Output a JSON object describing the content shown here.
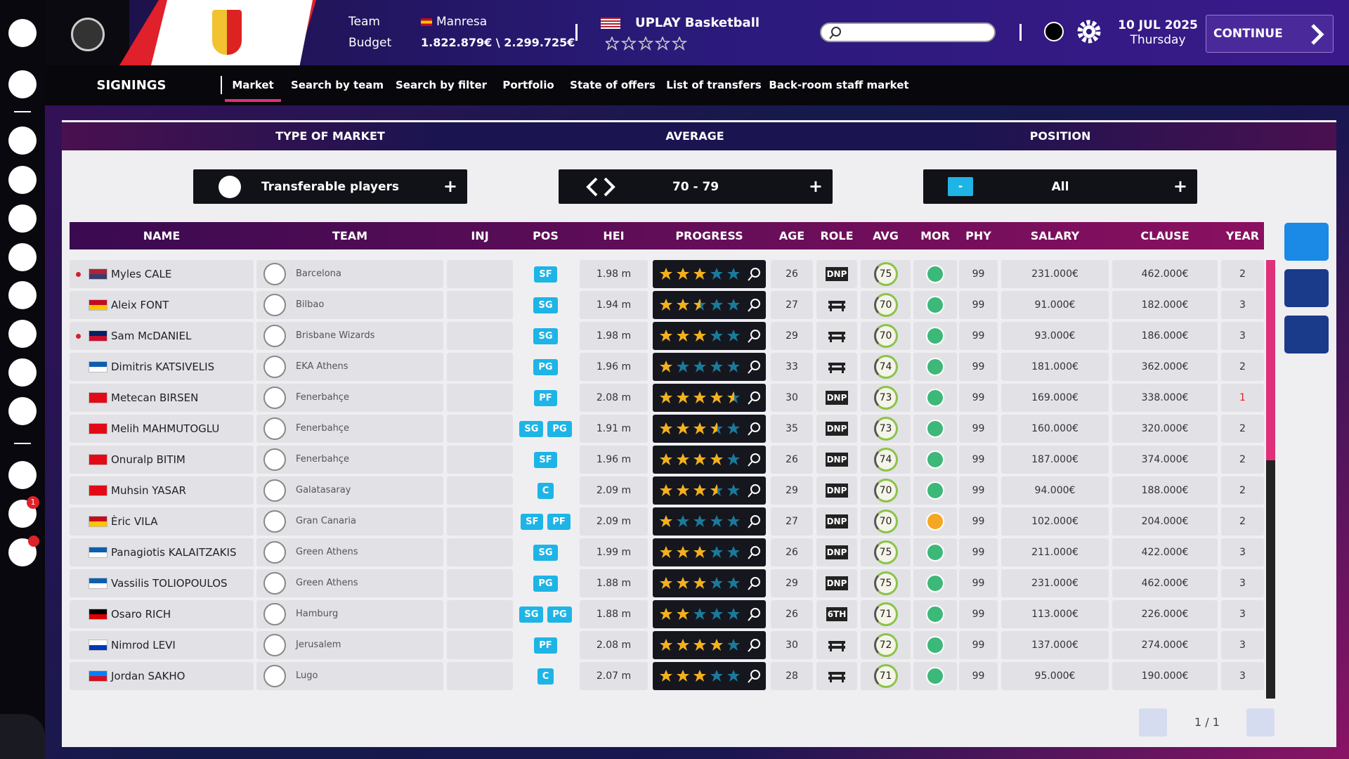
{
  "header": {
    "team_label": "Team",
    "team": "Manresa",
    "budget_label": "Budget",
    "budget": "1.822.879€ \\ 2.299.725€",
    "league": "UPLAY Basketball",
    "date": "10 JUL 2025",
    "weekday": "Thursday",
    "continue": "CONTINUE"
  },
  "nav": {
    "title": "SIGNINGS",
    "tabs": [
      "Market",
      "Search by team",
      "Search by filter",
      "Portfolio",
      "State of offers",
      "List of transfers",
      "Back-room staff market"
    ]
  },
  "filters": {
    "headers": [
      "TYPE OF MARKET",
      "AVERAGE",
      "POSITION"
    ],
    "market": "Transferable players",
    "average": "70 - 79",
    "position_badge": "-",
    "position": "All"
  },
  "sidebar": {
    "mail_badge": "1"
  },
  "table": {
    "columns": [
      "NAME",
      "TEAM",
      "INJ",
      "POS",
      "HEI",
      "PROGRESS",
      "AGE",
      "ROLE",
      "AVG",
      "MOR",
      "PHY",
      "SALARY",
      "CLAUSE",
      "YEAR"
    ],
    "rows": [
      {
        "name": "Myles CALE",
        "flag": [
          "#b22234",
          "#3c3b6e"
        ],
        "dot": true,
        "team": "Barcelona",
        "pos": [
          "SF"
        ],
        "hei": "1.98 m",
        "progress": 3,
        "age": 26,
        "role": "DNP",
        "avg": 75,
        "mor_color": "#3cb878",
        "phy": 99,
        "salary": "231.000€",
        "clause": "462.000€",
        "year": 2,
        "year_alert": false
      },
      {
        "name": "Aleix FONT",
        "flag": [
          "#c60b1e",
          "#ffc400"
        ],
        "dot": false,
        "team": "Bilbao",
        "pos": [
          "SG"
        ],
        "hei": "1.94 m",
        "progress": 2.5,
        "age": 27,
        "role": null,
        "avg": 70,
        "mor_color": "#3cb878",
        "phy": 99,
        "salary": "91.000€",
        "clause": "182.000€",
        "year": 3,
        "year_alert": false
      },
      {
        "name": "Sam McDANIEL",
        "flag": [
          "#012169",
          "#c8102e"
        ],
        "dot": true,
        "team": "Brisbane Wizards",
        "pos": [
          "SG"
        ],
        "hei": "1.98 m",
        "progress": 3,
        "age": 29,
        "role": null,
        "avg": 70,
        "mor_color": "#3cb878",
        "phy": 99,
        "salary": "93.000€",
        "clause": "186.000€",
        "year": 3,
        "year_alert": false
      },
      {
        "name": "Dimitris KATSIVELIS",
        "flag": [
          "#0d5eaf",
          "#ffffff"
        ],
        "dot": false,
        "team": "EKA Athens",
        "pos": [
          "PG"
        ],
        "hei": "1.96 m",
        "progress": 1,
        "age": 33,
        "role": null,
        "avg": 74,
        "mor_color": "#3cb878",
        "phy": 99,
        "salary": "181.000€",
        "clause": "362.000€",
        "year": 2,
        "year_alert": false
      },
      {
        "name": "Metecan BIRSEN",
        "flag": [
          "#e30a17",
          "#e30a17"
        ],
        "dot": false,
        "team": "Fenerbahçe",
        "pos": [
          "PF"
        ],
        "hei": "2.08 m",
        "progress": 4.5,
        "age": 30,
        "role": "DNP",
        "avg": 73,
        "mor_color": "#3cb878",
        "phy": 99,
        "salary": "169.000€",
        "clause": "338.000€",
        "year": 1,
        "year_alert": true
      },
      {
        "name": "Melih MAHMUTOGLU",
        "flag": [
          "#e30a17",
          "#e30a17"
        ],
        "dot": false,
        "team": "Fenerbahçe",
        "pos": [
          "SG",
          "PG"
        ],
        "hei": "1.91 m",
        "progress": 3.5,
        "age": 35,
        "role": "DNP",
        "avg": 73,
        "mor_color": "#3cb878",
        "phy": 99,
        "salary": "160.000€",
        "clause": "320.000€",
        "year": 2,
        "year_alert": false
      },
      {
        "name": "Onuralp BITIM",
        "flag": [
          "#e30a17",
          "#e30a17"
        ],
        "dot": false,
        "team": "Fenerbahçe",
        "pos": [
          "SF"
        ],
        "hei": "1.96 m",
        "progress": 4,
        "age": 26,
        "role": "DNP",
        "avg": 74,
        "mor_color": "#3cb878",
        "phy": 99,
        "salary": "187.000€",
        "clause": "374.000€",
        "year": 2,
        "year_alert": false
      },
      {
        "name": "Muhsin YASAR",
        "flag": [
          "#e30a17",
          "#e30a17"
        ],
        "dot": false,
        "team": "Galatasaray",
        "pos": [
          "C"
        ],
        "hei": "2.09 m",
        "progress": 3.5,
        "age": 29,
        "role": "DNP",
        "avg": 70,
        "mor_color": "#3cb878",
        "phy": 99,
        "salary": "94.000€",
        "clause": "188.000€",
        "year": 2,
        "year_alert": false
      },
      {
        "name": "Èric VILA",
        "flag": [
          "#c60b1e",
          "#ffc400"
        ],
        "dot": false,
        "team": "Gran Canaria",
        "pos": [
          "SF",
          "PF"
        ],
        "hei": "2.09 m",
        "progress": 1,
        "age": 27,
        "role": "DNP",
        "avg": 70,
        "mor_color": "#f5a623",
        "phy": 99,
        "salary": "102.000€",
        "clause": "204.000€",
        "year": 2,
        "year_alert": false
      },
      {
        "name": "Panagiotis KALAITZAKIS",
        "flag": [
          "#0d5eaf",
          "#ffffff"
        ],
        "dot": false,
        "team": "Green Athens",
        "pos": [
          "SG"
        ],
        "hei": "1.99 m",
        "progress": 3,
        "age": 26,
        "role": "DNP",
        "avg": 75,
        "mor_color": "#3cb878",
        "phy": 99,
        "salary": "211.000€",
        "clause": "422.000€",
        "year": 3,
        "year_alert": false
      },
      {
        "name": "Vassilis TOLIOPOULOS",
        "flag": [
          "#0d5eaf",
          "#ffffff"
        ],
        "dot": false,
        "team": "Green Athens",
        "pos": [
          "PG"
        ],
        "hei": "1.88 m",
        "progress": 3,
        "age": 29,
        "role": "DNP",
        "avg": 75,
        "mor_color": "#3cb878",
        "phy": 99,
        "salary": "231.000€",
        "clause": "462.000€",
        "year": 3,
        "year_alert": false
      },
      {
        "name": "Osaro RICH",
        "flag": [
          "#000000",
          "#dd0000"
        ],
        "dot": false,
        "team": "Hamburg",
        "pos": [
          "SG",
          "PG"
        ],
        "hei": "1.88 m",
        "progress": 2,
        "age": 26,
        "role": "6TH",
        "avg": 71,
        "mor_color": "#3cb878",
        "phy": 99,
        "salary": "113.000€",
        "clause": "226.000€",
        "year": 3,
        "year_alert": false
      },
      {
        "name": "Nimrod LEVI",
        "flag": [
          "#ffffff",
          "#0038b8"
        ],
        "dot": false,
        "team": "Jerusalem",
        "pos": [
          "PF"
        ],
        "hei": "2.08 m",
        "progress": 4,
        "age": 30,
        "role": null,
        "avg": 72,
        "mor_color": "#3cb878",
        "phy": 99,
        "salary": "137.000€",
        "clause": "274.000€",
        "year": 3,
        "year_alert": false
      },
      {
        "name": "Jordan SAKHO",
        "flag": [
          "#007fff",
          "#ce1021"
        ],
        "dot": false,
        "team": "Lugo",
        "pos": [
          "C"
        ],
        "hei": "2.07 m",
        "progress": 3,
        "age": 28,
        "role": null,
        "avg": 71,
        "mor_color": "#3cb878",
        "phy": 99,
        "salary": "95.000€",
        "clause": "190.000€",
        "year": 3,
        "year_alert": false
      }
    ]
  },
  "pagination": {
    "label": "1 / 1"
  }
}
